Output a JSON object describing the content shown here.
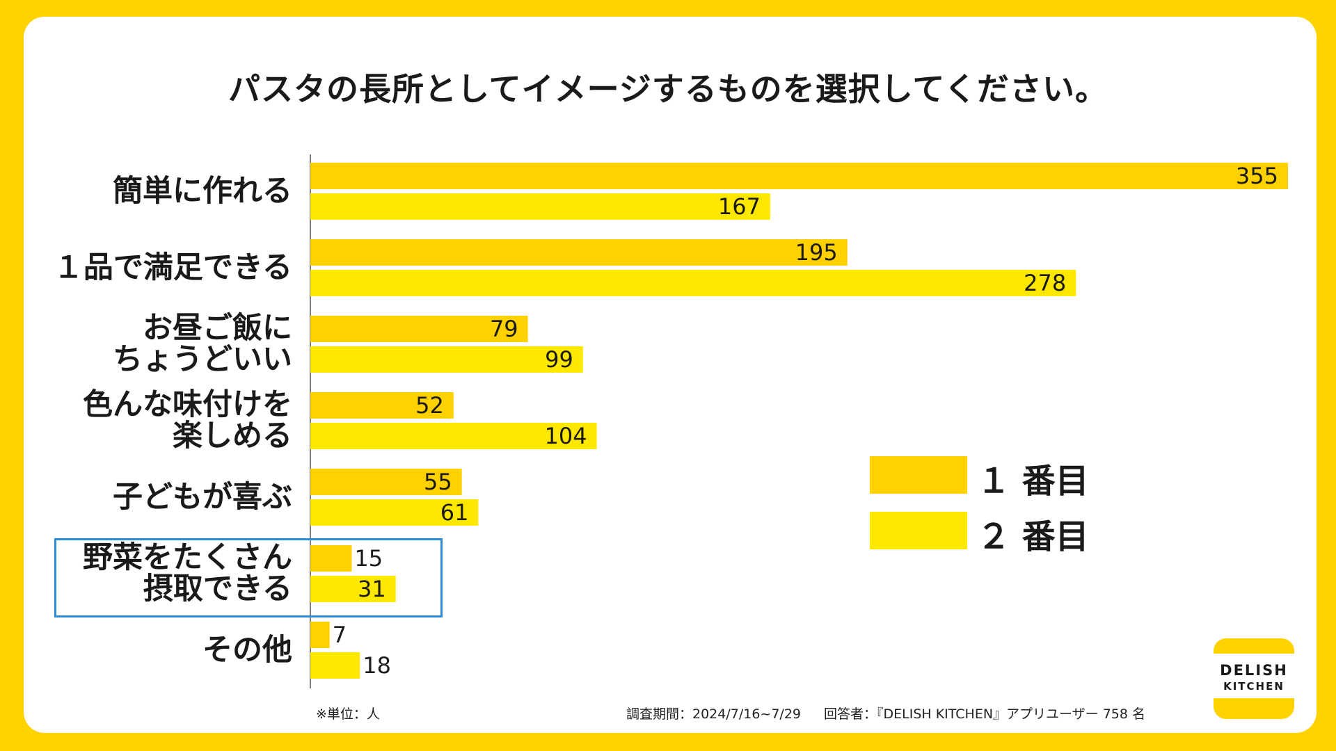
{
  "chart_data": {
    "type": "bar",
    "orientation": "horizontal",
    "title": "パスタの長所としてイメージするものを選択してください。",
    "categories": [
      [
        "簡単に作れる"
      ],
      [
        "１品で満足できる"
      ],
      [
        "お昼ご飯に",
        "ちょうどいい"
      ],
      [
        "色んな味付けを",
        "楽しめる"
      ],
      [
        "子どもが喜ぶ"
      ],
      [
        "野菜をたくさん",
        "摂取できる"
      ],
      [
        "その他"
      ]
    ],
    "series": [
      {
        "name": "１番目",
        "color": "#FFD100",
        "values": [
          355,
          195,
          79,
          52,
          55,
          15,
          7
        ]
      },
      {
        "name": "２番目",
        "color": "#FFE800",
        "values": [
          167,
          278,
          99,
          104,
          61,
          31,
          18
        ]
      }
    ],
    "xlim": [
      0,
      355
    ],
    "highlighted_category_index": 5,
    "highlight_color": "#2E8BD8"
  },
  "legend": {
    "first": "１ 番目",
    "second": "２ 番目"
  },
  "notes": {
    "unit": "※単位：人",
    "period": "調査期間：2024/7/16~7/29",
    "respondents": "回答者：『DELISH KITCHEN』アプリユーザー 758 名"
  },
  "logo": {
    "line1": "DELISH",
    "line2": "KITCHEN"
  }
}
